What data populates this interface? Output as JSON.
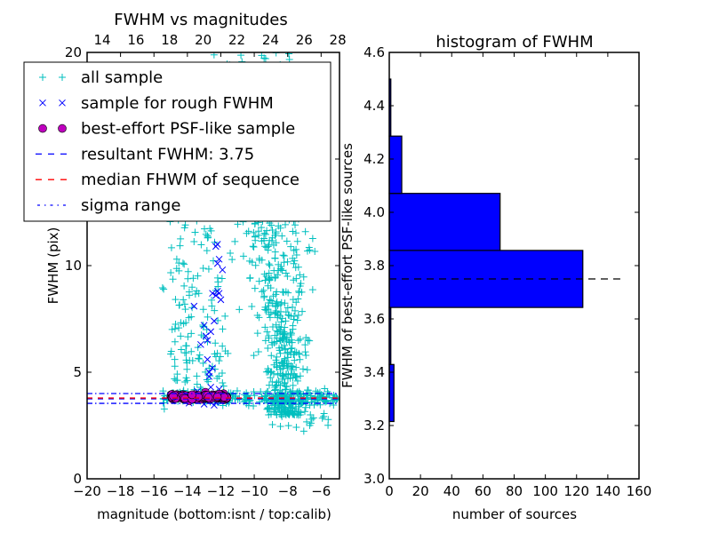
{
  "chart_data": [
    {
      "type": "scatter",
      "title": "FWHM vs magnitudes",
      "xlabel": "magnitude (bottom:isnt / top:calib)",
      "ylabel": "FWHM (pix)",
      "xlim": [
        -20,
        -4.9
      ],
      "ylim": [
        0,
        20
      ],
      "xticks": [
        -20,
        -18,
        -16,
        -14,
        -12,
        -10,
        -8,
        -6
      ],
      "xtick_labels": [
        "−20",
        "−18",
        "−16",
        "−14",
        "−12",
        "−10",
        "−8",
        "−6"
      ],
      "yticks": [
        0,
        5,
        10,
        15,
        20
      ],
      "ytick_labels": [
        "0",
        "5",
        "10",
        "15",
        "20"
      ],
      "top_xticks": [
        14,
        16,
        18,
        20,
        22,
        24,
        26,
        28
      ],
      "top_xtick_labels": [
        "14",
        "16",
        "18",
        "20",
        "22",
        "24",
        "26",
        "28"
      ],
      "top_xlim": [
        13.1,
        28.1
      ],
      "grid": false,
      "legend": {
        "placement": "upper-left",
        "entries": [
          {
            "label": "all sample",
            "marker": "plus",
            "color": "#00bfbf"
          },
          {
            "label": "sample for rough FWHM",
            "marker": "x",
            "color": "#0000ff"
          },
          {
            "label": "best-effort PSF-like sample",
            "marker": "circle",
            "color": "#bf00bf"
          },
          {
            "label": "resultant FWHM: 3.75",
            "marker": "dashed-line",
            "color": "#0000ff"
          },
          {
            "label": "median FHWM of sequence",
            "marker": "dashed-line",
            "color": "#ff0000"
          },
          {
            "label": "sigma range",
            "marker": "dashdot-line",
            "color": "#0000ff"
          }
        ]
      },
      "series": [
        {
          "name": "all sample",
          "marker": "plus",
          "color": "#00bfbf",
          "clusters": [
            {
              "x_range": [
                -15.5,
                -5
              ],
              "y_center": 3.8,
              "y_spread": 0.15,
              "count": 260,
              "note": "stellar locus"
            },
            {
              "x_range": [
                -11,
                -6.5
              ],
              "y_range": [
                3,
                20
              ],
              "count": 700,
              "note": "extended sources plume, denser near -8"
            },
            {
              "x_range": [
                -15.5,
                -11.5
              ],
              "y_range": [
                4,
                16
              ],
              "count": 180,
              "note": "sparse bright scatter"
            },
            {
              "x_range": [
                -9,
                -5.5
              ],
              "y_range": [
                2.2,
                3.3
              ],
              "count": 20,
              "note": "small sources below locus"
            }
          ]
        },
        {
          "name": "sample for rough FWHM",
          "marker": "x",
          "color": "#0000ff",
          "points": [
            [
              -14.8,
              4.0
            ],
            [
              -14.5,
              3.9
            ],
            [
              -13.9,
              3.55
            ],
            [
              -13.4,
              4.1
            ],
            [
              -13.0,
              3.5
            ],
            [
              -12.7,
              4.8
            ],
            [
              -12.6,
              4.3
            ],
            [
              -12.4,
              3.45
            ],
            [
              -12.3,
              3.6
            ],
            [
              -12.1,
              4.2
            ],
            [
              -12.0,
              3.7
            ],
            [
              -13.6,
              8.1
            ],
            [
              -13.0,
              7.2
            ],
            [
              -12.9,
              6.7
            ],
            [
              -12.8,
              6.5
            ],
            [
              -12.6,
              6.9
            ],
            [
              -12.4,
              7.4
            ],
            [
              -12.3,
              8.6
            ],
            [
              -12.1,
              8.7
            ],
            [
              -12.0,
              8.4
            ],
            [
              -12.2,
              8.8
            ],
            [
              -12.5,
              8.7
            ],
            [
              -12.3,
              10.9
            ],
            [
              -12.2,
              11.0
            ],
            [
              -12.1,
              10.3
            ],
            [
              -12.2,
              10.1
            ],
            [
              -11.9,
              9.8
            ],
            [
              -13.2,
              6.3
            ],
            [
              -12.8,
              5.6
            ],
            [
              -12.5,
              5.2
            ],
            [
              -12.7,
              5.0
            ]
          ]
        },
        {
          "name": "best-effort PSF-like sample",
          "marker": "circle",
          "color": "#bf00bf",
          "x_range": [
            -15.0,
            -11.6
          ],
          "y_center": 3.85,
          "y_spread": 0.1,
          "count": 210
        }
      ],
      "hlines": [
        {
          "name": "resultant FWHM",
          "y": 3.75,
          "style": "dashed",
          "color": "#0000ff"
        },
        {
          "name": "median FHWM of sequence",
          "y": 3.79,
          "style": "dashed",
          "color": "#ff0000"
        },
        {
          "name": "sigma range upper",
          "y": 4.0,
          "style": "dashdot",
          "color": "#0000ff"
        },
        {
          "name": "sigma range lower",
          "y": 3.54,
          "style": "dashdot",
          "color": "#0000ff"
        }
      ]
    },
    {
      "type": "bar",
      "orientation": "horizontal",
      "title": "histogram of FWHM",
      "xlabel": "number of sources",
      "ylabel": "FWHM of best-effort PSF-like sources",
      "xlim": [
        0,
        160
      ],
      "ylim": [
        3.0,
        4.6
      ],
      "xticks": [
        0,
        20,
        40,
        60,
        80,
        100,
        120,
        140,
        160
      ],
      "xtick_labels": [
        "0",
        "20",
        "40",
        "60",
        "80",
        "100",
        "120",
        "140",
        "160"
      ],
      "yticks": [
        3.0,
        3.2,
        3.4,
        3.6,
        3.8,
        4.0,
        4.2,
        4.4,
        4.6
      ],
      "ytick_labels": [
        "3.0",
        "3.2",
        "3.4",
        "3.6",
        "3.8",
        "4.0",
        "4.2",
        "4.4",
        "4.6"
      ],
      "bin_edges": [
        3.215,
        3.429,
        3.643,
        3.857,
        4.071,
        4.286,
        4.5
      ],
      "values": [
        3,
        1,
        124,
        71,
        8,
        1
      ],
      "bar_color": "#0000ff",
      "hline": {
        "y": 3.75,
        "x_range": [
          0,
          148
        ],
        "style": "dashed",
        "color": "#000000"
      },
      "grid": false
    }
  ]
}
